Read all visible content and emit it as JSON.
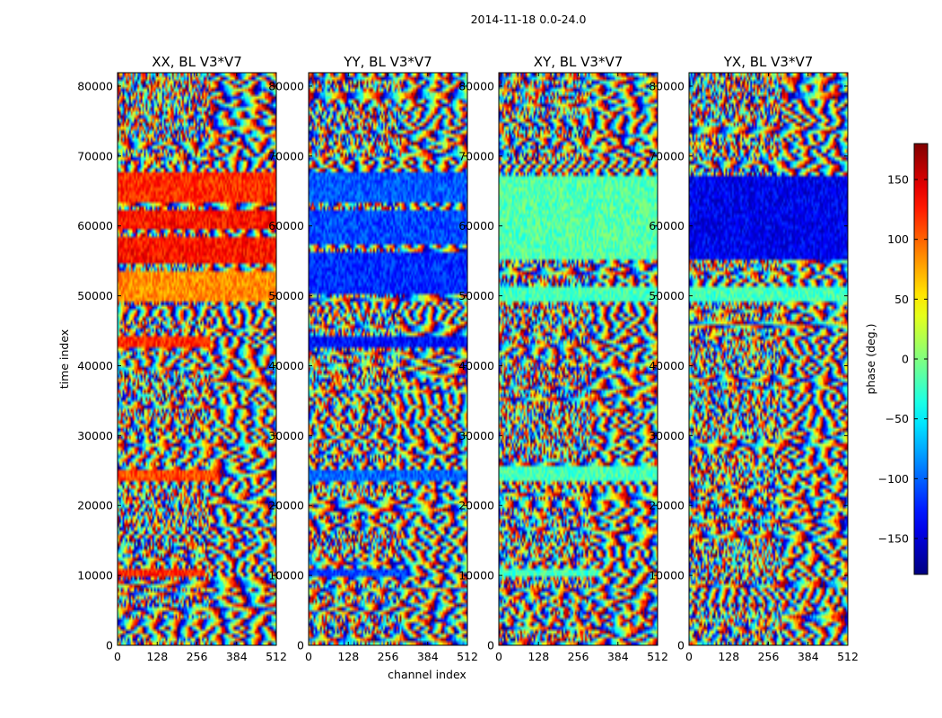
{
  "chart_data": {
    "type": "heatmap",
    "suptitle": "2014-11-18 0.0-24.0",
    "xlabel": "channel index",
    "ylabel": "time index",
    "xlim": [
      0,
      512
    ],
    "ylim": [
      0,
      81920
    ],
    "x_ticks": [
      "0",
      "128",
      "256",
      "384",
      "512"
    ],
    "y_ticks": [
      "0",
      "10000",
      "20000",
      "30000",
      "40000",
      "50000",
      "60000",
      "70000",
      "80000"
    ],
    "colormap": "jet",
    "colorbar": {
      "label": "phase (deg.)",
      "range": [
        -180,
        180
      ],
      "ticks": [
        "150",
        "100",
        "50",
        "0",
        "−50",
        "−100",
        "−150"
      ],
      "tick_values": [
        150,
        100,
        50,
        0,
        -50,
        -100,
        -150
      ]
    },
    "panels": [
      {
        "title": "XX, BL V3*V7",
        "bands": [
          {
            "y0": 10000,
            "y1": 11000,
            "phase": 120,
            "x_end": 280
          },
          {
            "y0": 23500,
            "y1": 25000,
            "phase": 110,
            "x_end": 320
          },
          {
            "y0": 42700,
            "y1": 44200,
            "phase": 120,
            "x_end": 300
          },
          {
            "y0": 49200,
            "y1": 53500,
            "phase": 85,
            "x_end": 512
          },
          {
            "y0": 54500,
            "y1": 58500,
            "phase": 130,
            "x_end": 512
          },
          {
            "y0": 59500,
            "y1": 62500,
            "phase": 130,
            "x_end": 512
          },
          {
            "y0": 63500,
            "y1": 67500,
            "phase": 120,
            "x_end": 512
          }
        ]
      },
      {
        "title": "YY, BL V3*V7",
        "bands": [
          {
            "y0": 10000,
            "y1": 11000,
            "phase": -110,
            "x_end": 320
          },
          {
            "y0": 23500,
            "y1": 25000,
            "phase": -100,
            "x_end": 512
          },
          {
            "y0": 42700,
            "y1": 44200,
            "phase": -130,
            "x_end": 512
          },
          {
            "y0": 50500,
            "y1": 56000,
            "phase": -120,
            "x_end": 512
          },
          {
            "y0": 57500,
            "y1": 62500,
            "phase": -110,
            "x_end": 512
          },
          {
            "y0": 63500,
            "y1": 67500,
            "phase": -105,
            "x_end": 512
          }
        ]
      },
      {
        "title": "XY, BL V3*V7",
        "bands": [
          {
            "y0": 10000,
            "y1": 11000,
            "phase": -20,
            "x_end": 320
          },
          {
            "y0": 23500,
            "y1": 25500,
            "phase": -20,
            "x_end": 512
          },
          {
            "y0": 49000,
            "y1": 51500,
            "phase": -20,
            "x_end": 512
          },
          {
            "y0": 55000,
            "y1": 67000,
            "phase": -15,
            "x_end": 512
          }
        ]
      },
      {
        "title": "YX, BL V3*V7",
        "bands": [
          {
            "y0": 49000,
            "y1": 51500,
            "phase": -20,
            "x_end": 512
          },
          {
            "y0": 55000,
            "y1": 67000,
            "phase": -140,
            "x_end": 512
          }
        ]
      }
    ]
  }
}
